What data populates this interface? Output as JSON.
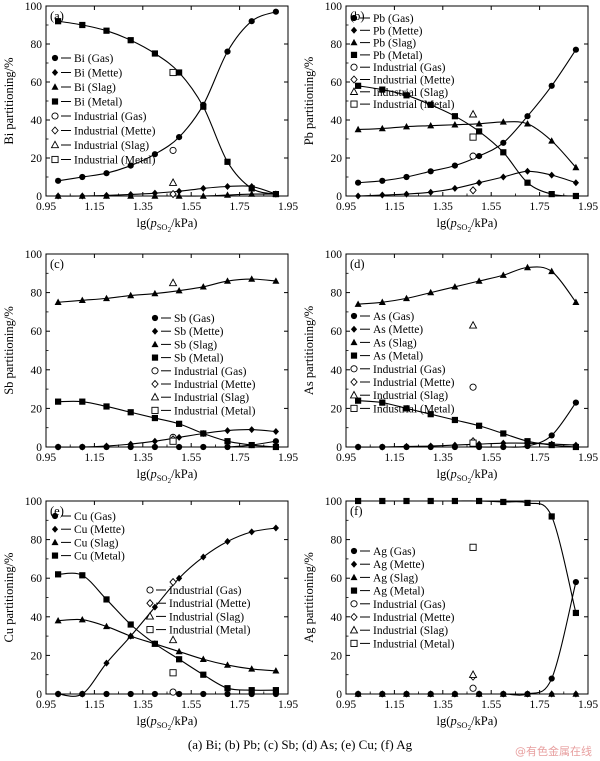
{
  "caption": "(a) Bi; (b) Pb; (c) Sb; (d) As; (e) Cu; (f) Ag",
  "watermark": "@有色金属在线",
  "axis_common": {
    "xlabel_pre": "lg(",
    "xlabel_p": "p",
    "xlabel_sub": "SO",
    "xlabel_sub2": "2",
    "xlabel_post": "/kPa)",
    "xticks": [
      "0.95",
      "1.15",
      "1.35",
      "1.55",
      "1.75",
      "1.95"
    ],
    "xlim": [
      0.95,
      1.95
    ],
    "ylim": [
      0,
      100
    ],
    "yticks": [
      "0",
      "20",
      "40",
      "60",
      "80",
      "100"
    ]
  },
  "chart_data": [
    {
      "type": "line",
      "panel": "(a)",
      "ylabel": "Bi partitioning/%",
      "legend_pos": "center-left",
      "x": [
        1.0,
        1.1,
        1.2,
        1.3,
        1.4,
        1.5,
        1.6,
        1.7,
        1.8,
        1.9
      ],
      "series": [
        {
          "name": "Bi (Gas)",
          "marker": "circle",
          "values": [
            8,
            10,
            12,
            16,
            22,
            31,
            48,
            76,
            92,
            97
          ]
        },
        {
          "name": "Bi (Mette)",
          "marker": "diamond",
          "values": [
            0,
            0,
            0.3,
            0.8,
            1.5,
            2.5,
            4,
            5,
            5,
            1
          ]
        },
        {
          "name": "Bi (Slag)",
          "marker": "triangle",
          "values": [
            0,
            0,
            0,
            0,
            0,
            0,
            0,
            0.5,
            1,
            1
          ]
        },
        {
          "name": "Bi (Metal)",
          "marker": "square",
          "values": [
            92,
            90,
            87,
            82,
            75,
            65,
            47,
            18,
            4,
            1
          ]
        }
      ],
      "industrial": [
        {
          "name": "Industrial (Gas)",
          "marker": "circle-open",
          "x": 1.475,
          "y": 24
        },
        {
          "name": "Industrial (Mette)",
          "marker": "diamond-open",
          "x": 1.475,
          "y": 1
        },
        {
          "name": "Industrial (Slag)",
          "marker": "triangle-open",
          "x": 1.475,
          "y": 7
        },
        {
          "name": "Industrial (Metal)",
          "marker": "square-open",
          "x": 1.475,
          "y": 65
        }
      ]
    },
    {
      "type": "line",
      "panel": "(b)",
      "ylabel": "Pb partitioning/%",
      "legend_pos": "top-left",
      "x": [
        1.0,
        1.1,
        1.2,
        1.3,
        1.4,
        1.5,
        1.6,
        1.7,
        1.8,
        1.9
      ],
      "series": [
        {
          "name": "Pb (Gas)",
          "marker": "circle",
          "values": [
            7,
            8,
            10,
            13,
            16,
            21,
            28,
            42,
            58,
            77
          ]
        },
        {
          "name": "Pb (Mette)",
          "marker": "diamond",
          "values": [
            0,
            0.5,
            1,
            2,
            4,
            7,
            10,
            13,
            11,
            7
          ]
        },
        {
          "name": "Pb (Slag)",
          "marker": "triangle",
          "values": [
            35,
            35.5,
            36.5,
            37,
            37.5,
            38,
            39,
            38,
            29,
            15
          ]
        },
        {
          "name": "Pb (Metal)",
          "marker": "square",
          "values": [
            58,
            56,
            53,
            48,
            42,
            34,
            23,
            7,
            1,
            0
          ]
        }
      ],
      "industrial": [
        {
          "name": "Industrial (Gas)",
          "marker": "circle-open",
          "x": 1.475,
          "y": 21
        },
        {
          "name": "Industrial (Mette)",
          "marker": "diamond-open",
          "x": 1.475,
          "y": 3
        },
        {
          "name": "Industrial (Slag)",
          "marker": "triangle-open",
          "x": 1.475,
          "y": 43
        },
        {
          "name": "Industrial (Metal)",
          "marker": "square-open",
          "x": 1.475,
          "y": 31
        }
      ]
    },
    {
      "type": "line",
      "panel": "(c)",
      "ylabel": "Sb partitioning/%",
      "legend_pos": "center-right",
      "x": [
        1.0,
        1.1,
        1.2,
        1.3,
        1.4,
        1.5,
        1.6,
        1.7,
        1.8,
        1.9
      ],
      "series": [
        {
          "name": "Sb (Gas)",
          "marker": "circle",
          "values": [
            0,
            0,
            0,
            0,
            0,
            0,
            0,
            0,
            1,
            3
          ]
        },
        {
          "name": "Sb (Mette)",
          "marker": "diamond",
          "values": [
            0,
            0,
            0.5,
            1.5,
            3,
            5,
            7,
            8.5,
            9,
            8
          ]
        },
        {
          "name": "Sb (Slag)",
          "marker": "triangle",
          "values": [
            75,
            76,
            77,
            78.5,
            79.5,
            81,
            83,
            86,
            87,
            86
          ]
        },
        {
          "name": "Sb (Metal)",
          "marker": "square",
          "values": [
            23.5,
            23.5,
            21,
            18,
            15,
            12,
            7,
            3,
            1,
            0
          ]
        }
      ],
      "industrial": [
        {
          "name": "Industrial (Gas)",
          "marker": "circle-open",
          "x": 1.475,
          "y": 5
        },
        {
          "name": "Industrial (Mette)",
          "marker": "diamond-open",
          "x": 1.475,
          "y": 4
        },
        {
          "name": "Industrial (Slag)",
          "marker": "triangle-open",
          "x": 1.475,
          "y": 85
        },
        {
          "name": "Industrial (Metal)",
          "marker": "square-open",
          "x": 1.475,
          "y": 3
        }
      ]
    },
    {
      "type": "line",
      "panel": "(d)",
      "ylabel": "As partitioning/%",
      "legend_pos": "center-left",
      "x": [
        1.0,
        1.1,
        1.2,
        1.3,
        1.4,
        1.5,
        1.6,
        1.7,
        1.8,
        1.9
      ],
      "series": [
        {
          "name": "As (Gas)",
          "marker": "circle",
          "values": [
            0,
            0,
            0,
            0,
            0,
            0,
            0,
            0.5,
            6,
            23
          ]
        },
        {
          "name": "As (Mette)",
          "marker": "diamond",
          "values": [
            0,
            0,
            0.3,
            0.5,
            1,
            1.5,
            2,
            2,
            1.5,
            1
          ]
        },
        {
          "name": "As (Slag)",
          "marker": "triangle",
          "values": [
            74,
            75,
            77,
            80,
            83,
            86,
            89,
            93,
            91,
            75
          ]
        },
        {
          "name": "As (Metal)",
          "marker": "square",
          "values": [
            24,
            23,
            20,
            17,
            14,
            11,
            7,
            3,
            1,
            0
          ]
        }
      ],
      "industrial": [
        {
          "name": "Industrial (Gas)",
          "marker": "circle-open",
          "x": 1.475,
          "y": 31
        },
        {
          "name": "Industrial (Mette)",
          "marker": "diamond-open",
          "x": 1.475,
          "y": 3
        },
        {
          "name": "Industrial (Slag)",
          "marker": "triangle-open",
          "x": 1.475,
          "y": 63
        },
        {
          "name": "Industrial (Metal)",
          "marker": "square-open",
          "x": 1.475,
          "y": 2
        }
      ]
    },
    {
      "type": "line",
      "panel": "(e)",
      "ylabel": "Cu partitioning/%",
      "legend_pos": "top-left",
      "x": [
        1.0,
        1.1,
        1.2,
        1.3,
        1.4,
        1.5,
        1.6,
        1.7,
        1.8,
        1.9
      ],
      "series": [
        {
          "name": "Cu (Gas)",
          "marker": "circle",
          "values": [
            0,
            0,
            0,
            0,
            0,
            0,
            0,
            0,
            0,
            0
          ]
        },
        {
          "name": "Cu (Mette)",
          "marker": "diamond",
          "values": [
            0,
            0,
            16,
            30,
            45,
            60,
            71,
            79,
            84,
            86
          ]
        },
        {
          "name": "Cu (Slag)",
          "marker": "triangle",
          "values": [
            38,
            38.5,
            35,
            30,
            26,
            22,
            18,
            15,
            13,
            12
          ]
        },
        {
          "name": "Cu (Metal)",
          "marker": "square",
          "values": [
            62,
            61.5,
            49,
            36,
            26,
            18,
            10,
            3,
            2,
            2
          ]
        }
      ],
      "industrial": [
        {
          "name": "Industrial (Gas)",
          "marker": "circle-open",
          "x": 1.475,
          "y": 1
        },
        {
          "name": "Industrial (Mette)",
          "marker": "diamond-open",
          "x": 1.475,
          "y": 58
        },
        {
          "name": "Industrial (Slag)",
          "marker": "triangle-open",
          "x": 1.475,
          "y": 28
        },
        {
          "name": "Industrial (Metal)",
          "marker": "square-open",
          "x": 1.475,
          "y": 11
        }
      ]
    },
    {
      "type": "line",
      "panel": "(f)",
      "ylabel": "Ag partitioning/%",
      "legend_pos": "center-left",
      "x": [
        1.0,
        1.1,
        1.2,
        1.3,
        1.4,
        1.5,
        1.6,
        1.7,
        1.8,
        1.9
      ],
      "series": [
        {
          "name": "Ag (Gas)",
          "marker": "circle",
          "values": [
            0,
            0,
            0,
            0,
            0,
            0,
            0,
            0,
            8,
            58
          ]
        },
        {
          "name": "Ag (Mette)",
          "marker": "diamond",
          "values": [
            0,
            0,
            0,
            0,
            0,
            0,
            0,
            0,
            0,
            0
          ]
        },
        {
          "name": "Ag (Slag)",
          "marker": "triangle",
          "values": [
            0,
            0,
            0,
            0,
            0,
            0,
            0,
            0,
            0,
            0
          ]
        },
        {
          "name": "Ag (Metal)",
          "marker": "square",
          "values": [
            100,
            100,
            100,
            100,
            100,
            100,
            99.5,
            99,
            92,
            42
          ]
        }
      ],
      "industrial": [
        {
          "name": "Industrial (Gas)",
          "marker": "circle-open",
          "x": 1.475,
          "y": 3
        },
        {
          "name": "Industrial (Mette)",
          "marker": "diamond-open",
          "x": 1.475,
          "y": 9
        },
        {
          "name": "Industrial (Slag)",
          "marker": "triangle-open",
          "x": 1.475,
          "y": 10
        },
        {
          "name": "Industrial (Metal)",
          "marker": "square-open",
          "x": 1.475,
          "y": 76
        }
      ]
    }
  ]
}
